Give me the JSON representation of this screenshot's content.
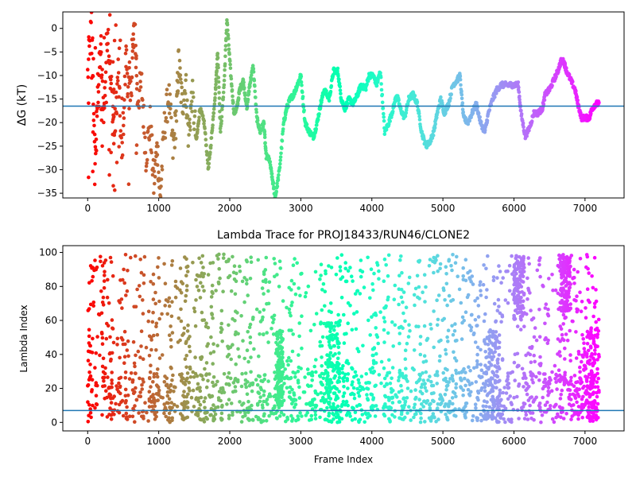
{
  "chart_data": [
    {
      "type": "scatter",
      "title": "",
      "xlabel": "",
      "ylabel": "ΔG (kT)",
      "xlim": [
        -350,
        7550
      ],
      "ylim": [
        -36,
        3.5
      ],
      "xticks": [
        0,
        1000,
        2000,
        3000,
        4000,
        5000,
        6000,
        7000
      ],
      "xtick_labels": [
        "0",
        "1000",
        "2000",
        "3000",
        "4000",
        "5000",
        "6000",
        "7000"
      ],
      "yticks": [
        0,
        -5,
        -10,
        -15,
        -20,
        -25,
        -30,
        -35
      ],
      "ytick_labels": [
        "0",
        "−5",
        "−10",
        "−15",
        "−20",
        "−25",
        "−30",
        "−35"
      ],
      "hline": -16.5,
      "hline_color": "#1f77b4",
      "grid": false,
      "colormap": "rainbow (red at frame 0 → purple at frame 7200)",
      "x_range": [
        0,
        7200
      ],
      "trace": [
        [
          0,
          -10
        ],
        [
          60,
          2
        ],
        [
          100,
          -30
        ],
        [
          140,
          -15
        ],
        [
          180,
          -5
        ],
        [
          230,
          -18
        ],
        [
          280,
          1
        ],
        [
          330,
          -12
        ],
        [
          380,
          -22
        ],
        [
          430,
          -9
        ],
        [
          480,
          -28
        ],
        [
          540,
          -6
        ],
        [
          600,
          -16
        ],
        [
          660,
          3
        ],
        [
          700,
          -15
        ],
        [
          760,
          -12
        ],
        [
          820,
          -27
        ],
        [
          880,
          -20
        ],
        [
          930,
          -33
        ],
        [
          980,
          -25
        ],
        [
          1020,
          -36
        ],
        [
          1080,
          -21
        ],
        [
          1140,
          -14
        ],
        [
          1200,
          -26
        ],
        [
          1250,
          -18
        ],
        [
          1280,
          -7
        ],
        [
          1330,
          -16
        ],
        [
          1380,
          -12
        ],
        [
          1420,
          -23
        ],
        [
          1470,
          -14
        ],
        [
          1530,
          -24
        ],
        [
          1580,
          -17
        ],
        [
          1640,
          -20
        ],
        [
          1700,
          -30
        ],
        [
          1750,
          -22
        ],
        [
          1800,
          -13
        ],
        [
          1830,
          -5
        ],
        [
          1870,
          -22
        ],
        [
          1920,
          -12
        ],
        [
          1960,
          2
        ],
        [
          2010,
          -9
        ],
        [
          2060,
          -18
        ],
        [
          2100,
          -17
        ],
        [
          2140,
          -13
        ],
        [
          2190,
          -11
        ],
        [
          2240,
          -17
        ],
        [
          2280,
          -12
        ],
        [
          2330,
          -8
        ],
        [
          2380,
          -19
        ],
        [
          2430,
          -22
        ],
        [
          2480,
          -20
        ],
        [
          2510,
          -27
        ],
        [
          2560,
          -28
        ],
        [
          2600,
          -32
        ],
        [
          2640,
          -36
        ],
        [
          2700,
          -30
        ],
        [
          2760,
          -20
        ],
        [
          2800,
          -17
        ],
        [
          2850,
          -15
        ],
        [
          2900,
          -14
        ],
        [
          2950,
          -12
        ],
        [
          3000,
          -10
        ],
        [
          3060,
          -20
        ],
        [
          3120,
          -22
        ],
        [
          3180,
          -23
        ],
        [
          3230,
          -20
        ],
        [
          3280,
          -16
        ],
        [
          3330,
          -13
        ],
        [
          3400,
          -15
        ],
        [
          3460,
          -9
        ],
        [
          3520,
          -9
        ],
        [
          3570,
          -15
        ],
        [
          3620,
          -17
        ],
        [
          3680,
          -15
        ],
        [
          3740,
          -16
        ],
        [
          3800,
          -14
        ],
        [
          3850,
          -12
        ],
        [
          3910,
          -13
        ],
        [
          3960,
          -10
        ],
        [
          4020,
          -10
        ],
        [
          4070,
          -12
        ],
        [
          4120,
          -9
        ],
        [
          4180,
          -22
        ],
        [
          4240,
          -20
        ],
        [
          4300,
          -17
        ],
        [
          4350,
          -14
        ],
        [
          4400,
          -17
        ],
        [
          4460,
          -19
        ],
        [
          4520,
          -15
        ],
        [
          4580,
          -14
        ],
        [
          4640,
          -16
        ],
        [
          4700,
          -22
        ],
        [
          4760,
          -25
        ],
        [
          4820,
          -24
        ],
        [
          4870,
          -22
        ],
        [
          4920,
          -18
        ],
        [
          4970,
          -15
        ],
        [
          5020,
          -18
        ],
        [
          5080,
          -16
        ],
        [
          5140,
          -12
        ],
        [
          5200,
          -11
        ],
        [
          5240,
          -10
        ],
        [
          5290,
          -19
        ],
        [
          5350,
          -20
        ],
        [
          5410,
          -18
        ],
        [
          5470,
          -16
        ],
        [
          5530,
          -20
        ],
        [
          5590,
          -22
        ],
        [
          5640,
          -18
        ],
        [
          5700,
          -15
        ],
        [
          5760,
          -13
        ],
        [
          5820,
          -12
        ],
        [
          5880,
          -12
        ],
        [
          5940,
          -12
        ],
        [
          6000,
          -12
        ],
        [
          6060,
          -12
        ],
        [
          6100,
          -18
        ],
        [
          6160,
          -23
        ],
        [
          6220,
          -21
        ],
        [
          6280,
          -18
        ],
        [
          6340,
          -18
        ],
        [
          6400,
          -17
        ],
        [
          6440,
          -14
        ],
        [
          6500,
          -13
        ],
        [
          6560,
          -11
        ],
        [
          6620,
          -9
        ],
        [
          6660,
          -7
        ],
        [
          6700,
          -7
        ],
        [
          6740,
          -9
        ],
        [
          6800,
          -11
        ],
        [
          6860,
          -13
        ],
        [
          6900,
          -16
        ],
        [
          6950,
          -19
        ],
        [
          7000,
          -19
        ],
        [
          7060,
          -19
        ],
        [
          7100,
          -17
        ],
        [
          7150,
          -16
        ],
        [
          7200,
          -16
        ]
      ]
    },
    {
      "type": "scatter",
      "title": "Lambda Trace for PROJ18433/RUN46/CLONE2",
      "xlabel": "Frame Index",
      "ylabel": "Lambda Index",
      "xlim": [
        -350,
        7550
      ],
      "ylim": [
        -5,
        104
      ],
      "xticks": [
        0,
        1000,
        2000,
        3000,
        4000,
        5000,
        6000,
        7000
      ],
      "xtick_labels": [
        "0",
        "1000",
        "2000",
        "3000",
        "4000",
        "5000",
        "6000",
        "7000"
      ],
      "yticks": [
        0,
        20,
        40,
        60,
        80,
        100
      ],
      "ytick_labels": [
        "0",
        "20",
        "40",
        "60",
        "80",
        "100"
      ],
      "hline": 7,
      "hline_color": "#1f77b4",
      "grid": false,
      "colormap": "rainbow (red at frame 0 → purple at frame 7200)",
      "x_range": [
        0,
        7200
      ],
      "y_range": [
        0,
        99
      ],
      "dense_bands": [
        [
          2650,
          2750,
          10,
          55
        ],
        [
          3350,
          3550,
          0,
          60
        ],
        [
          5600,
          5800,
          0,
          55
        ],
        [
          6000,
          6150,
          60,
          99
        ],
        [
          6650,
          6800,
          65,
          99
        ],
        [
          6950,
          7200,
          0,
          55
        ]
      ]
    }
  ]
}
